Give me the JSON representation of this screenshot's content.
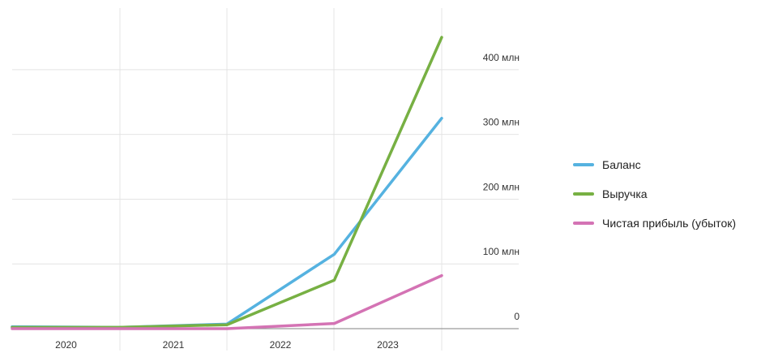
{
  "chart_data": {
    "type": "line",
    "x": [
      2019.5,
      2020.5,
      2021.5,
      2022.5,
      2023.5
    ],
    "x_tick_labels": [
      "2020",
      "2021",
      "2022",
      "2023"
    ],
    "y_tick_labels": [
      "0",
      "100 млн",
      "200 млн",
      "300 млн",
      "400 млн"
    ],
    "ylim": [
      0,
      450
    ],
    "grid": true,
    "legend_position": "right",
    "series": [
      {
        "name": "Баланс",
        "color": "#55b2e0",
        "values": [
          3,
          2,
          7,
          115,
          325
        ]
      },
      {
        "name": "Выручка",
        "color": "#77b043",
        "values": [
          2,
          2,
          6,
          75,
          450
        ]
      },
      {
        "name": "Чистая прибыль (убыток)",
        "color": "#d473b4",
        "values": [
          0,
          0,
          0,
          8,
          82
        ]
      }
    ]
  }
}
